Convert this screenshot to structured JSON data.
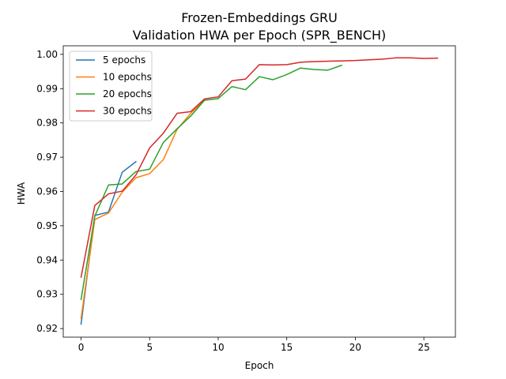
{
  "chart_data": {
    "type": "line",
    "title": "Frozen-Embeddings GRU",
    "subtitle": "Validation HWA per Epoch (SPR_BENCH)",
    "xlabel": "Epoch",
    "ylabel": "HWA",
    "xlim": [
      -1.3,
      27.3
    ],
    "ylim": [
      0.9175,
      1.0025
    ],
    "xticks": [
      0,
      5,
      10,
      15,
      20,
      25
    ],
    "yticks": [
      0.92,
      0.93,
      0.94,
      0.95,
      0.96,
      0.97,
      0.98,
      0.99,
      1.0
    ],
    "ytick_labels": [
      "0.92",
      "0.93",
      "0.94",
      "0.95",
      "0.96",
      "0.97",
      "0.98",
      "0.99",
      "1.00"
    ],
    "grid": false,
    "legend_position": "top-left",
    "series": [
      {
        "name": "5 epochs",
        "color": "#1f77b4",
        "x": [
          0,
          1,
          2,
          3,
          4
        ],
        "y": [
          0.9213,
          0.953,
          0.954,
          0.9656,
          0.9687
        ]
      },
      {
        "name": "10 epochs",
        "color": "#ff7f0e",
        "x": [
          0,
          1,
          2,
          3,
          4,
          5,
          6,
          7,
          8,
          9
        ],
        "y": [
          0.923,
          0.9518,
          0.9537,
          0.9598,
          0.964,
          0.9652,
          0.9693,
          0.9781,
          0.9828,
          0.9868
        ]
      },
      {
        "name": "20 epochs",
        "color": "#2ca02c",
        "x": [
          0,
          1,
          2,
          3,
          4,
          5,
          6,
          7,
          8,
          9,
          10,
          11,
          12,
          13,
          14,
          15,
          16,
          17,
          18,
          19
        ],
        "y": [
          0.9285,
          0.9528,
          0.9619,
          0.9622,
          0.9658,
          0.9665,
          0.9743,
          0.9783,
          0.982,
          0.9866,
          0.9871,
          0.9906,
          0.9897,
          0.9935,
          0.9926,
          0.9941,
          0.996,
          0.9956,
          0.9954,
          0.9968
        ]
      },
      {
        "name": "30 epochs",
        "color": "#d62728",
        "x": [
          0,
          1,
          2,
          3,
          4,
          5,
          6,
          7,
          8,
          9,
          10,
          11,
          12,
          13,
          14,
          15,
          16,
          17,
          18,
          19,
          20,
          21,
          22,
          23,
          24,
          25,
          26
        ],
        "y": [
          0.935,
          0.9559,
          0.9593,
          0.9601,
          0.9648,
          0.9727,
          0.977,
          0.9828,
          0.9833,
          0.987,
          0.9876,
          0.9923,
          0.9928,
          0.997,
          0.9969,
          0.997,
          0.9977,
          0.9979,
          0.998,
          0.9981,
          0.9982,
          0.9984,
          0.9986,
          0.999,
          0.999,
          0.9988,
          0.9989
        ]
      }
    ]
  }
}
